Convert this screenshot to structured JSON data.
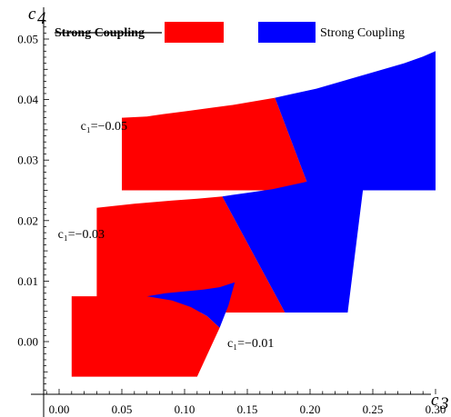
{
  "chart_data": {
    "type": "area",
    "xlabel": "c",
    "xlabel_sub": "3",
    "ylabel": "c",
    "ylabel_sub": "4",
    "xlim": [
      -0.02,
      0.305
    ],
    "ylim": [
      -0.0095,
      0.0535
    ],
    "xticks": [
      0.0,
      0.05,
      0.1,
      0.15,
      0.2,
      0.25,
      0.3
    ],
    "xtick_labels": [
      "0.00",
      "0.05",
      "0.10",
      "0.15",
      "0.20",
      "0.25",
      "0.30"
    ],
    "yticks": [
      0.0,
      0.01,
      0.02,
      0.03,
      0.04,
      0.05
    ],
    "ytick_labels": [
      "0.00",
      "0.01",
      "0.02",
      "0.03",
      "0.04",
      "0.05"
    ],
    "legend": [
      {
        "label": "Strong Coupling",
        "color": "#ff0000",
        "struck": true
      },
      {
        "label": "Strong Coupling",
        "color": "#0000ff",
        "struck": false
      }
    ],
    "series": [
      {
        "annotation": "c₁=−0.05",
        "red": [
          [
            0.05,
            -0.0005
          ],
          [
            0.05,
            0.0005
          ],
          [
            0.0,
            0.0
          ],
          [
            0.0,
            0.0
          ]
        ],
        "regions": {
          "red": [
            [
              0.05,
              0.037
            ],
            [
              0.07,
              0.0372
            ],
            [
              0.083,
              0.0376
            ],
            [
              0.102,
              0.0381
            ],
            [
              0.12,
              0.0386
            ],
            [
              0.138,
              0.0391
            ],
            [
              0.155,
              0.0397
            ],
            [
              0.172,
              0.0403
            ],
            [
              0.2,
              0.025
            ],
            [
              0.05,
              0.025
            ]
          ],
          "blue": [
            [
              0.172,
              0.0403
            ],
            [
              0.185,
              0.0409
            ],
            [
              0.205,
              0.0418
            ],
            [
              0.225,
              0.043
            ],
            [
              0.25,
              0.0445
            ],
            [
              0.275,
              0.046
            ],
            [
              0.29,
              0.0471
            ],
            [
              0.3,
              0.048
            ],
            [
              0.3,
              0.025
            ],
            [
              0.2,
              0.025
            ]
          ]
        }
      },
      {
        "annotation": "c₁=−0.03",
        "regions": {
          "red": [
            [
              0.03,
              0.0221
            ],
            [
              0.06,
              0.0228
            ],
            [
              0.09,
              0.0233
            ],
            [
              0.11,
              0.0236
            ],
            [
              0.13,
              0.024
            ],
            [
              0.18,
              0.0048
            ],
            [
              0.03,
              0.0048
            ]
          ],
          "blue": [
            [
              0.13,
              0.024
            ],
            [
              0.15,
              0.0246
            ],
            [
              0.17,
              0.0252
            ],
            [
              0.195,
              0.0263
            ],
            [
              0.215,
              0.0275
            ],
            [
              0.235,
              0.0288
            ],
            [
              0.245,
              0.0298
            ],
            [
              0.23,
              0.0048
            ],
            [
              0.18,
              0.0048
            ]
          ]
        }
      },
      {
        "annotation": "c₁=−0.01",
        "regions": {
          "red": [
            [
              0.01,
              0.0075
            ],
            [
              0.07,
              0.0075
            ],
            [
              0.09,
              0.0068
            ],
            [
              0.105,
              0.0057
            ],
            [
              0.118,
              0.0042
            ],
            [
              0.128,
              0.0023
            ],
            [
              0.11,
              -0.0058
            ],
            [
              0.01,
              -0.0058
            ]
          ],
          "blue": [
            [
              0.07,
              0.0075
            ],
            [
              0.085,
              0.008
            ],
            [
              0.1,
              0.0083
            ],
            [
              0.115,
              0.0086
            ],
            [
              0.128,
              0.009
            ],
            [
              0.14,
              0.0098
            ],
            [
              0.135,
              0.006
            ],
            [
              0.128,
              0.0023
            ],
            [
              0.118,
              0.0042
            ],
            [
              0.105,
              0.0057
            ],
            [
              0.09,
              0.0068
            ]
          ]
        }
      }
    ],
    "colors": {
      "red": "#ff0000",
      "blue": "#0000ff"
    }
  }
}
